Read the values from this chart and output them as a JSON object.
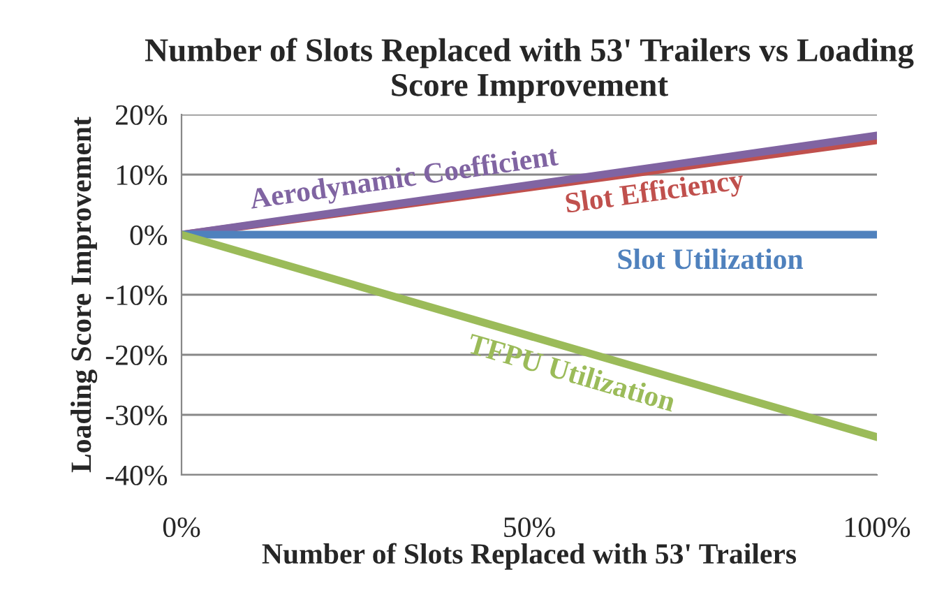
{
  "chart_data": {
    "type": "line",
    "title": "Number of Slots Replaced with 53' Trailers vs Loading Score Improvement",
    "xlabel": "Number of Slots Replaced with 53' Trailers",
    "ylabel": "Loading Score Improvement",
    "x": [
      0,
      100
    ],
    "series": [
      {
        "name": "Slot Efficiency",
        "color": "#c0504d",
        "values": [
          0,
          15.7
        ]
      },
      {
        "name": "Aerodynamic Coefficient",
        "color": "#8064a2",
        "values": [
          0,
          16.5
        ]
      },
      {
        "name": "Slot Utilization",
        "color": "#4f81bd",
        "values": [
          0,
          0
        ]
      },
      {
        "name": "TFPU Utilization",
        "color": "#9bbb59",
        "values": [
          0,
          -33.7
        ]
      }
    ],
    "xlim": [
      0,
      100
    ],
    "xticks": [
      {
        "value": 0,
        "label": "0%"
      },
      {
        "value": 50,
        "label": "50%"
      },
      {
        "value": 100,
        "label": "100%"
      }
    ],
    "ylim": [
      -40,
      20
    ],
    "yticks": [
      {
        "value": -40,
        "label": "-40%"
      },
      {
        "value": -30,
        "label": "-30%"
      },
      {
        "value": -20,
        "label": "-20%"
      },
      {
        "value": -10,
        "label": "-10%"
      },
      {
        "value": 0,
        "label": "0%"
      },
      {
        "value": 10,
        "label": "10%"
      },
      {
        "value": 20,
        "label": "20%"
      }
    ],
    "grid": "y",
    "legend": false,
    "marker": "none",
    "line_style": "solid"
  }
}
